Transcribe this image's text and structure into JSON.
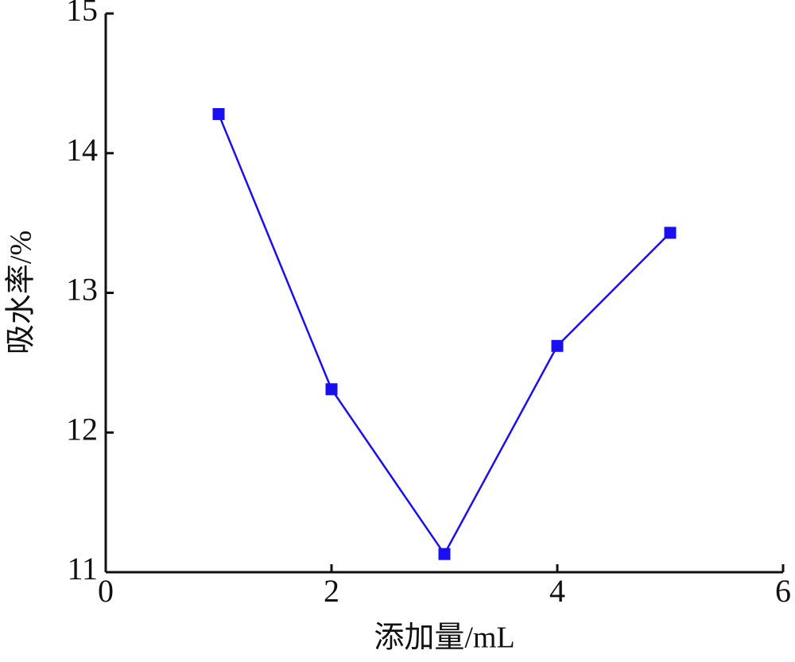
{
  "chart_data": {
    "type": "line",
    "x_label": "添加量/mL",
    "y_label": "吸水率/%",
    "x": [
      1,
      2,
      3,
      4,
      5
    ],
    "series": [
      {
        "color": "#1a0ff0",
        "values": [
          14.28,
          12.31,
          11.13,
          12.62,
          13.43
        ]
      }
    ],
    "xlim": [
      0,
      6
    ],
    "xticks": [
      0,
      2,
      4,
      6
    ],
    "ylim": [
      11,
      15
    ],
    "yticks": [
      11,
      12,
      13,
      14,
      15
    ],
    "marker": "square",
    "grid": false
  }
}
